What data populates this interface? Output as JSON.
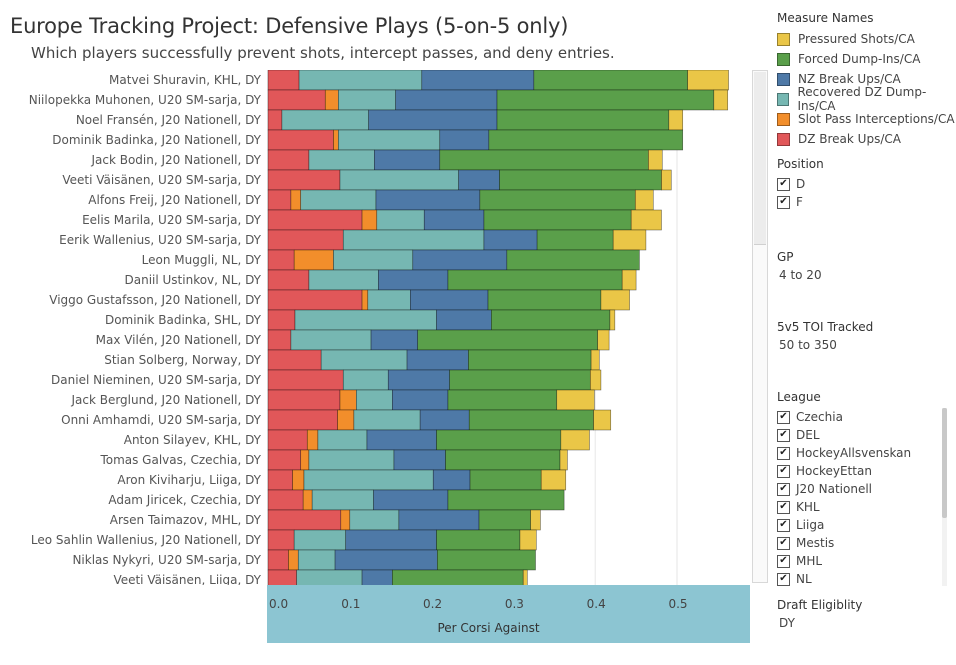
{
  "header": {
    "title": "Europe Tracking Project: Defensive Plays (5-on-5 only)",
    "subtitle": "Which players successfully prevent shots, intercept passes, and deny entries."
  },
  "legend": {
    "title": "Measure Names",
    "items": [
      {
        "label": "Pressured Shots/CA",
        "color": "#eac647"
      },
      {
        "label": "Forced Dump-Ins/CA",
        "color": "#5a9f4a"
      },
      {
        "label": "NZ Break Ups/CA",
        "color": "#4e79a7"
      },
      {
        "label": "Recovered DZ Dump-Ins/CA",
        "color": "#76b7b2"
      },
      {
        "label": "Slot Pass Interceptions/CA",
        "color": "#f28e2b"
      },
      {
        "label": "DZ Break Ups/CA",
        "color": "#e15759"
      }
    ]
  },
  "filters": {
    "position": {
      "title": "Position",
      "options": [
        "D",
        "F"
      ]
    },
    "gp": {
      "title": "GP",
      "value": "4 to 20"
    },
    "toi": {
      "title": "5v5 TOI Tracked",
      "value": "50 to 350"
    },
    "league": {
      "title": "League",
      "options": [
        "Czechia",
        "DEL",
        "HockeyAllsvenskan",
        "HockeyEttan",
        "J20 Nationell",
        "KHL",
        "Liiga",
        "Mestis",
        "MHL",
        "NL"
      ]
    },
    "draft": {
      "title": "Draft Eligiblity",
      "value": "DY"
    }
  },
  "chart_data": {
    "type": "bar",
    "orientation": "horizontal",
    "stacked": true,
    "xlabel": "Per Corsi Against",
    "xlim": [
      0,
      0.58
    ],
    "xticks": [
      "0.0",
      "0.1",
      "0.2",
      "0.3",
      "0.4",
      "0.5"
    ],
    "categories": [
      "Matvei Shuravin, KHL, DY",
      "Niilopekka Muhonen, U20 SM-sarja, DY",
      "Noel Fransén, J20 Nationell, DY",
      "Dominik Badinka, J20 Nationell, DY",
      "Jack Bodin, J20 Nationell, DY",
      "Veeti Väisänen, U20 SM-sarja, DY",
      "Alfons Freij, J20 Nationell, DY",
      "Eelis Marila, U20 SM-sarja, DY",
      "Eerik Wallenius, U20 SM-sarja, DY",
      "Leon Muggli, NL, DY",
      "Daniil Ustinkov, NL, DY",
      "Viggo Gustafsson, J20 Nationell, DY",
      "Dominik Badinka, SHL, DY",
      "Max Vilén, J20 Nationell, DY",
      "Stian Solberg, Norway, DY",
      "Daniel Nieminen, U20 SM-sarja, DY",
      "Jack Berglund, J20 Nationell, DY",
      "Onni Amhamdi, U20 SM-sarja, DY",
      "Anton Silayev, KHL, DY",
      "Tomas Galvas, Czechia, DY",
      "Aron Kiviharju, Liiga, DY",
      "Adam Jiricek, Czechia, DY",
      "Arsen Taimazov, MHL, DY",
      "Leo Sahlin Wallenius, J20 Nationell, DY",
      "Niklas Nykyri, U20 SM-sarja, DY",
      "Veeti Väisänen, Liiga, DY"
    ],
    "series": [
      {
        "name": "DZ Break Ups/CA",
        "values": [
          0.038,
          0.07,
          0.017,
          0.08,
          0.05,
          0.088,
          0.028,
          0.115,
          0.092,
          0.032,
          0.05,
          0.115,
          0.033,
          0.028,
          0.065,
          0.092,
          0.088,
          0.085,
          0.048,
          0.04,
          0.03,
          0.043,
          0.089,
          0.032,
          0.025,
          0.035
        ]
      },
      {
        "name": "Slot Pass Interceptions/CA",
        "values": [
          0,
          0.016,
          0,
          0.006,
          0,
          0,
          0.012,
          0.018,
          0,
          0.048,
          0,
          0.007,
          0,
          0,
          0,
          0,
          0.02,
          0.02,
          0.013,
          0.01,
          0.014,
          0.011,
          0.011,
          0,
          0.012,
          0
        ]
      },
      {
        "name": "Recovered DZ Dump-Ins/CA",
        "values": [
          0.15,
          0.07,
          0.106,
          0.124,
          0.08,
          0.145,
          0.092,
          0.058,
          0.172,
          0.097,
          0.085,
          0.052,
          0.173,
          0.098,
          0.105,
          0.055,
          0.044,
          0.081,
          0.06,
          0.104,
          0.158,
          0.075,
          0.06,
          0.063,
          0.045,
          0.08
        ]
      },
      {
        "name": "NZ Break Ups/CA",
        "values": [
          0.137,
          0.124,
          0.157,
          0.06,
          0.08,
          0.05,
          0.127,
          0.073,
          0.065,
          0.115,
          0.085,
          0.095,
          0.067,
          0.057,
          0.075,
          0.075,
          0.068,
          0.06,
          0.085,
          0.063,
          0.045,
          0.091,
          0.098,
          0.111,
          0.125,
          0.037
        ]
      },
      {
        "name": "Forced Dump-Ins/CA",
        "values": [
          0.188,
          0.265,
          0.21,
          0.237,
          0.255,
          0.198,
          0.19,
          0.18,
          0.093,
          0.162,
          0.213,
          0.138,
          0.145,
          0.22,
          0.15,
          0.172,
          0.133,
          0.152,
          0.152,
          0.14,
          0.087,
          0.142,
          0.063,
          0.102,
          0.12,
          0.16
        ]
      },
      {
        "name": "Pressured Shots/CA",
        "values": [
          0.05,
          0.017,
          0.017,
          0,
          0.017,
          0.012,
          0.022,
          0.037,
          0.04,
          0,
          0.017,
          0.035,
          0.006,
          0.014,
          0.01,
          0.013,
          0.046,
          0.021,
          0.035,
          0.009,
          0.03,
          0,
          0.012,
          0.02,
          0,
          0.005
        ]
      }
    ]
  }
}
